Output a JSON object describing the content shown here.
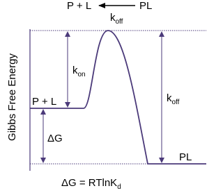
{
  "header": {
    "left": "P + L",
    "right": "PL",
    "arrow_label": {
      "main": "k",
      "sub": "off"
    }
  },
  "axis_label": "Gibbs Free Energy",
  "levels": {
    "reactant": "P + L",
    "product": "PL"
  },
  "arrows": {
    "kon": {
      "main": "k",
      "sub": "on"
    },
    "koff": {
      "main": "k",
      "sub": "off"
    },
    "dg": "ΔG"
  },
  "equation": {
    "main": "ΔG = RTlnK",
    "sub": "d"
  }
}
